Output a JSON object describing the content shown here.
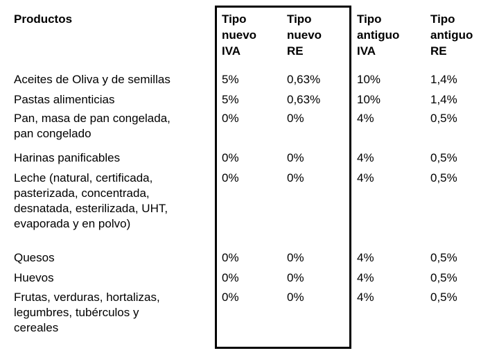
{
  "header": {
    "productos": "Productos",
    "nuevo_iva": "Tipo\nnuevo\nIVA",
    "nuevo_re": "Tipo\nnuevo\nRE",
    "antiguo_iva": "Tipo\nantiguo\nIVA",
    "antiguo_re": "Tipo\nantiguo\nRE"
  },
  "rows": [
    {
      "producto": "Aceites de Oliva y de semillas",
      "nuevo_iva": "5%",
      "nuevo_re": "0,63%",
      "antiguo_iva": "10%",
      "antiguo_re": "1,4%"
    },
    {
      "producto": "Pastas alimenticias",
      "nuevo_iva": "5%",
      "nuevo_re": "0,63%",
      "antiguo_iva": "10%",
      "antiguo_re": "1,4%"
    },
    {
      "producto": "Pan, masa de pan congelada,\npan congelado",
      "nuevo_iva": "0%",
      "nuevo_re": "0%",
      "antiguo_iva": "4%",
      "antiguo_re": "0,5%"
    },
    {
      "producto": "Harinas panificables",
      "nuevo_iva": "0%",
      "nuevo_re": "0%",
      "antiguo_iva": "4%",
      "antiguo_re": "0,5%"
    },
    {
      "producto": "Leche (natural, certificada,\npasterizada, concentrada,\ndesnatada, esterilizada, UHT,\nevaporada y en polvo)",
      "nuevo_iva": "0%",
      "nuevo_re": "0%",
      "antiguo_iva": "4%",
      "antiguo_re": "0,5%"
    },
    {
      "producto": "Quesos",
      "nuevo_iva": "0%",
      "nuevo_re": "0%",
      "antiguo_iva": "4%",
      "antiguo_re": "0,5%"
    },
    {
      "producto": "Huevos",
      "nuevo_iva": "0%",
      "nuevo_re": "0%",
      "antiguo_iva": "4%",
      "antiguo_re": "0,5%"
    },
    {
      "producto": "Frutas, verduras, hortalizas,\nlegumbres, tubérculos y\ncereales",
      "nuevo_iva": "0%",
      "nuevo_re": "0%",
      "antiguo_iva": "4%",
      "antiguo_re": "0,5%"
    }
  ]
}
